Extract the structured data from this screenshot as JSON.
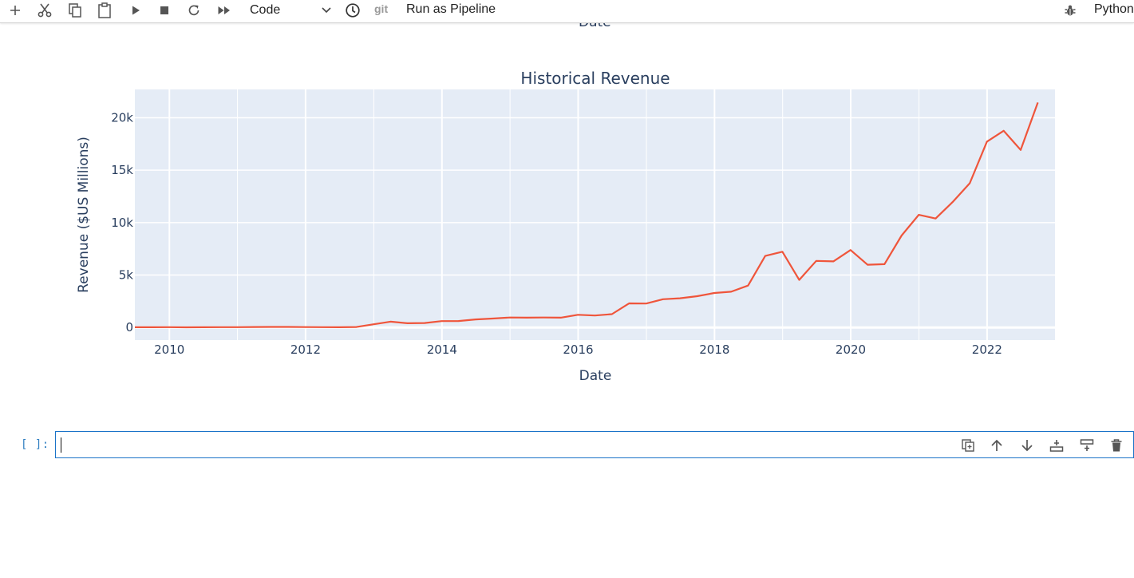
{
  "toolbar": {
    "buttons": [
      {
        "name": "add-cell",
        "icon": "plus-icon"
      },
      {
        "name": "cut",
        "icon": "scissors-icon"
      },
      {
        "name": "copy",
        "icon": "copy-icon"
      },
      {
        "name": "paste",
        "icon": "clipboard-icon"
      },
      {
        "name": "run",
        "icon": "play-icon"
      },
      {
        "name": "interrupt",
        "icon": "stop-icon"
      },
      {
        "name": "restart",
        "icon": "refresh-icon"
      },
      {
        "name": "restart-run-all",
        "icon": "fast-forward-icon"
      }
    ],
    "cell_type": "Code",
    "history_icon": "clock-icon",
    "git_label": "git",
    "pipeline_label": "Run as Pipeline",
    "debug_icon": "bug-icon",
    "kernel": "Python"
  },
  "previous_output": {
    "xlabel_fragment": "Date"
  },
  "chart_data": {
    "type": "line",
    "title": "Historical Revenue",
    "xlabel": "Date",
    "ylabel": "Revenue ($US Millions)",
    "xlim": [
      "2009-06-30",
      "2022-12-31"
    ],
    "ylim": [
      -1200,
      22700
    ],
    "x_ticks": [
      "2010",
      "2012",
      "2014",
      "2016",
      "2018",
      "2020",
      "2022"
    ],
    "y_ticks": [
      {
        "value": 0,
        "label": "0"
      },
      {
        "value": 5000,
        "label": "5k"
      },
      {
        "value": 10000,
        "label": "10k"
      },
      {
        "value": 15000,
        "label": "15k"
      },
      {
        "value": 20000,
        "label": "20k"
      }
    ],
    "grid": true,
    "legend": "none",
    "colors": {
      "line": "#ef553b",
      "plot_bg": "#e5ecf6",
      "grid": "#ffffff",
      "text": "#2a3f5f"
    },
    "series": [
      {
        "x": [
          "2009-06-30",
          "2009-09-30",
          "2009-12-31",
          "2010-03-31",
          "2010-06-30",
          "2010-09-30",
          "2010-12-31",
          "2011-03-31",
          "2011-06-30",
          "2011-09-30",
          "2011-12-31",
          "2012-03-31",
          "2012-06-30",
          "2012-09-30",
          "2012-12-31",
          "2013-03-31",
          "2013-06-30",
          "2013-09-30",
          "2013-12-31",
          "2014-03-31",
          "2014-06-30",
          "2014-09-30",
          "2014-12-31",
          "2015-03-31",
          "2015-06-30",
          "2015-09-30",
          "2015-12-31",
          "2016-03-31",
          "2016-06-30",
          "2016-09-30",
          "2016-12-31",
          "2017-03-31",
          "2017-06-30",
          "2017-09-30",
          "2017-12-31",
          "2018-03-31",
          "2018-06-30",
          "2018-09-30",
          "2018-12-31",
          "2019-03-31",
          "2019-06-30",
          "2019-09-30",
          "2019-12-31",
          "2020-03-31",
          "2020-06-30",
          "2020-09-30",
          "2020-12-31",
          "2021-03-31",
          "2021-06-30",
          "2021-09-30",
          "2021-12-31",
          "2022-03-31",
          "2022-06-30",
          "2022-09-30"
        ],
        "y": [
          27,
          28,
          31,
          21,
          28,
          31,
          36,
          49,
          58,
          57,
          39,
          30,
          27,
          50,
          306,
          562,
          405,
          431,
          615,
          621,
          769,
          852,
          957,
          940,
          954,
          937,
          1214,
          1147,
          1270,
          2298,
          2284,
          2696,
          2790,
          2985,
          3288,
          3409,
          4002,
          6824,
          7226,
          4541,
          6350,
          6303,
          7384,
          5985,
          6036,
          8771,
          10744,
          10389,
          11958,
          13757,
          17719,
          18756,
          16934,
          21454
        ]
      }
    ]
  },
  "cell": {
    "prompt": "[ ]:",
    "tools": [
      {
        "name": "duplicate",
        "icon": "duplicate-icon"
      },
      {
        "name": "move-up",
        "icon": "arrow-up-icon"
      },
      {
        "name": "move-down",
        "icon": "arrow-down-icon"
      },
      {
        "name": "insert-above",
        "icon": "insert-above-icon"
      },
      {
        "name": "insert-below",
        "icon": "insert-below-icon"
      },
      {
        "name": "delete",
        "icon": "trash-icon"
      }
    ]
  }
}
